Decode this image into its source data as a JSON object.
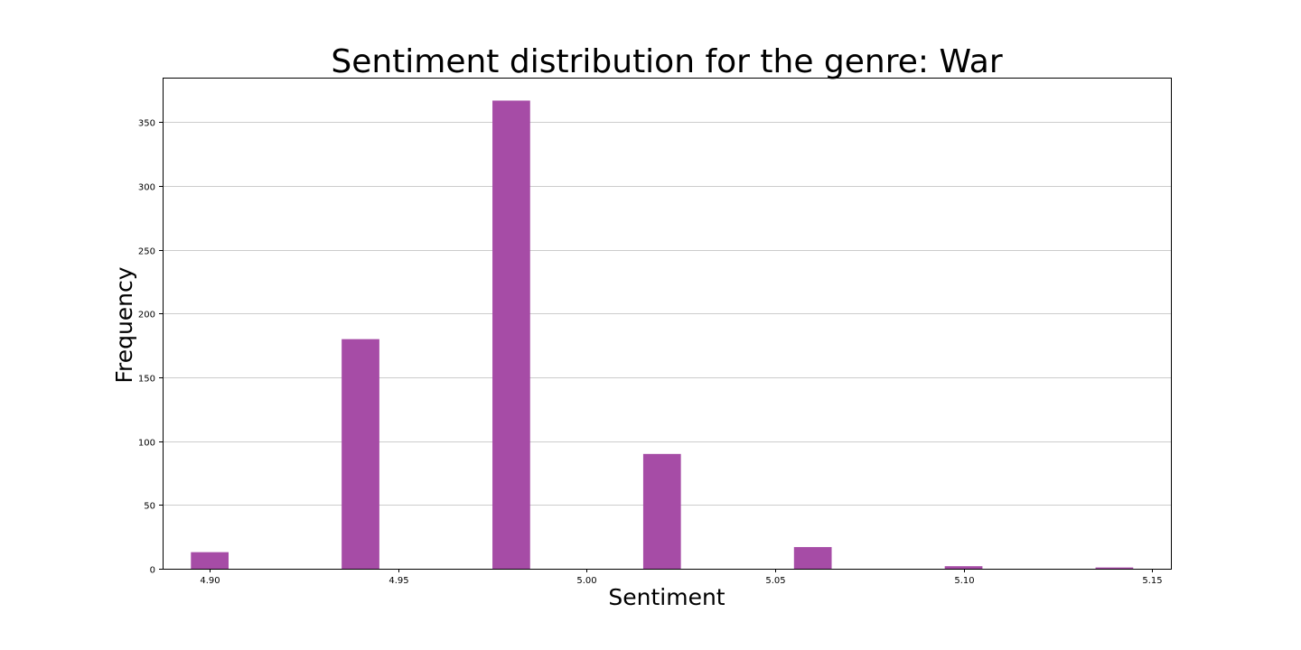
{
  "chart_data": {
    "type": "bar",
    "title": "Sentiment distribution for the genre: War",
    "xlabel": "Sentiment",
    "ylabel": "Frequency",
    "xlim": [
      4.8875,
      5.155
    ],
    "ylim": [
      0,
      385
    ],
    "grid": "y",
    "bar_color": "#a64ca6",
    "bar_width": 0.01,
    "x_ticks": [
      "4.90",
      "4.95",
      "5.00",
      "5.05",
      "5.10",
      "5.15"
    ],
    "y_ticks": [
      "0",
      "50",
      "100",
      "150",
      "200",
      "250",
      "300",
      "350"
    ],
    "bins": [
      {
        "x": 4.9,
        "value": 13
      },
      {
        "x": 4.94,
        "value": 180
      },
      {
        "x": 4.98,
        "value": 367
      },
      {
        "x": 5.02,
        "value": 90
      },
      {
        "x": 5.06,
        "value": 17
      },
      {
        "x": 5.1,
        "value": 2
      },
      {
        "x": 5.14,
        "value": 1
      }
    ]
  }
}
